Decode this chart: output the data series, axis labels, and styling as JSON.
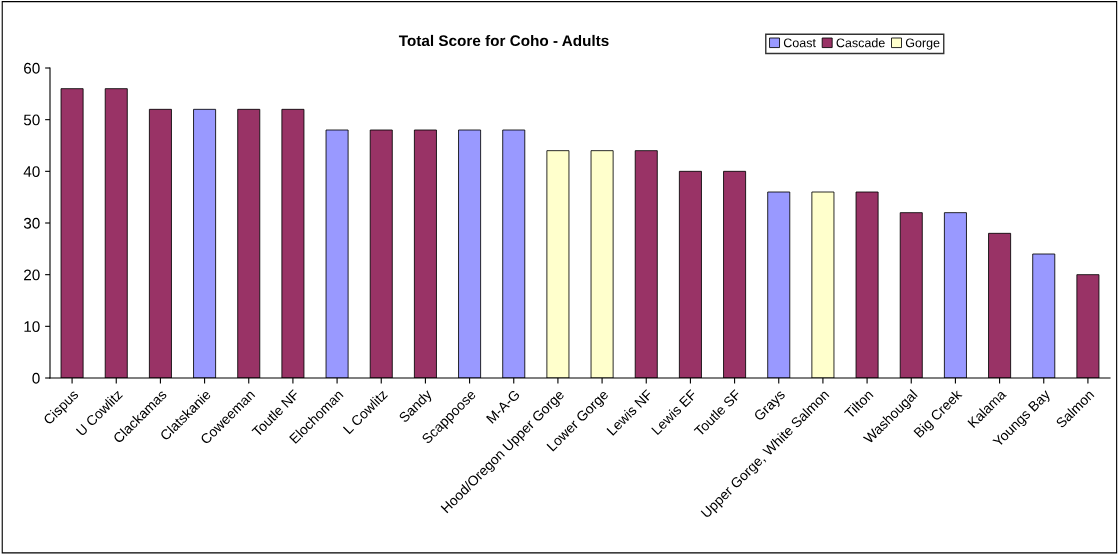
{
  "chart_data": {
    "type": "bar",
    "title": "Total Score for Coho - Adults",
    "legend": "top right",
    "grid": false,
    "categories": [
      "Cispus",
      "U Cowlitz",
      "Clackamas",
      "Clatskanie",
      "Coweeman",
      "Toutle NF",
      "Elochoman",
      "L Cowlitz",
      "Sandy",
      "Scappoose",
      "M-A-G",
      "Hood/Oregon Upper Gorge",
      "Lower Gorge",
      "Lewis NF",
      "Lewis EF",
      "Toutle SF",
      "Grays",
      "Upper Gorge, White Salmon",
      "Tilton",
      "Washougal",
      "Big Creek",
      "Kalama",
      "Youngs Bay",
      "Salmon"
    ],
    "series": [
      {
        "name": "Coast",
        "color": "#9999ff",
        "values": [
          null,
          null,
          null,
          52,
          null,
          null,
          48,
          null,
          null,
          48,
          48,
          null,
          null,
          null,
          null,
          null,
          36,
          null,
          null,
          null,
          32,
          null,
          24,
          null
        ]
      },
      {
        "name": "Cascade",
        "color": "#993366",
        "values": [
          56,
          56,
          52,
          null,
          52,
          52,
          null,
          48,
          48,
          null,
          null,
          null,
          null,
          44,
          40,
          40,
          null,
          null,
          36,
          32,
          null,
          28,
          null,
          20
        ]
      },
      {
        "name": "Gorge",
        "color": "#ffffcc",
        "values": [
          null,
          null,
          null,
          null,
          null,
          null,
          null,
          null,
          null,
          null,
          null,
          44,
          44,
          null,
          null,
          null,
          null,
          36,
          null,
          null,
          null,
          null,
          null,
          null
        ]
      }
    ],
    "ylim": [
      0,
      60
    ],
    "yticks": [
      0,
      10,
      20,
      30,
      40,
      50,
      60
    ]
  }
}
